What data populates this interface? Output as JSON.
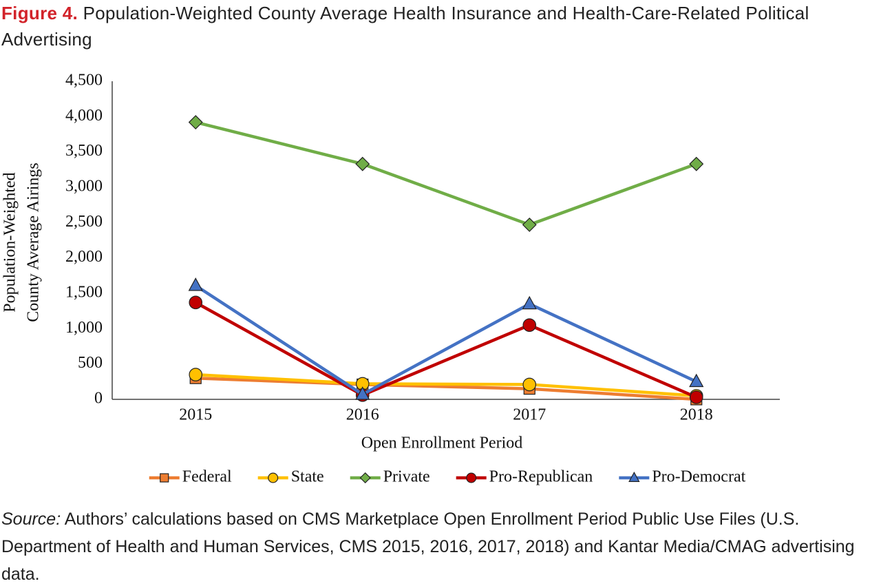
{
  "chart_data": {
    "type": "line",
    "figure_label": "Figure 4.",
    "title": "Population-Weighted County Average Health Insurance and Health-Care-Related Political Advertising",
    "xlabel": "Open Enrollment Period",
    "ylabel": [
      "Population-Weighted",
      "County Average Airings"
    ],
    "categories": [
      "2015",
      "2016",
      "2017",
      "2018"
    ],
    "ylim": [
      0,
      4500
    ],
    "yticks": [
      0,
      500,
      {
        "value": 1000,
        "label": "1,000"
      },
      {
        "value": 1500,
        "label": "1,500"
      },
      {
        "value": 2000,
        "label": "2,000"
      },
      {
        "value": 2500,
        "label": "2,500"
      },
      {
        "value": 3000,
        "label": "3,000"
      },
      {
        "value": 3500,
        "label": "3,500"
      },
      {
        "value": 4000,
        "label": "4,000"
      },
      {
        "value": 4500,
        "label": "4,500"
      }
    ],
    "grid": false,
    "legend": "bottom",
    "series": [
      {
        "name": "Federal",
        "color": "#ed7d31",
        "marker": "square",
        "values": [
          300,
          210,
          150,
          0
        ]
      },
      {
        "name": "State",
        "color": "#ffc000",
        "marker": "circle",
        "values": [
          350,
          220,
          210,
          50
        ]
      },
      {
        "name": "Private",
        "color": "#70ad47",
        "marker": "diamond",
        "values": [
          3920,
          3330,
          2470,
          3330
        ]
      },
      {
        "name": "Pro-Republican",
        "color": "#c00000",
        "marker": "circle",
        "values": [
          1370,
          60,
          1050,
          30
        ]
      },
      {
        "name": "Pro-Democrat",
        "color": "#4472c4",
        "marker": "triangle",
        "values": [
          1610,
          70,
          1350,
          250
        ]
      }
    ],
    "source_label": "Source:",
    "source": "Authors’ calculations based on CMS Marketplace Open Enrollment Period Public Use Files (U.S. Department of Health and Human Services, CMS 2015, 2016, 2017, 2018) and Kantar Media/CMAG advertising data."
  }
}
